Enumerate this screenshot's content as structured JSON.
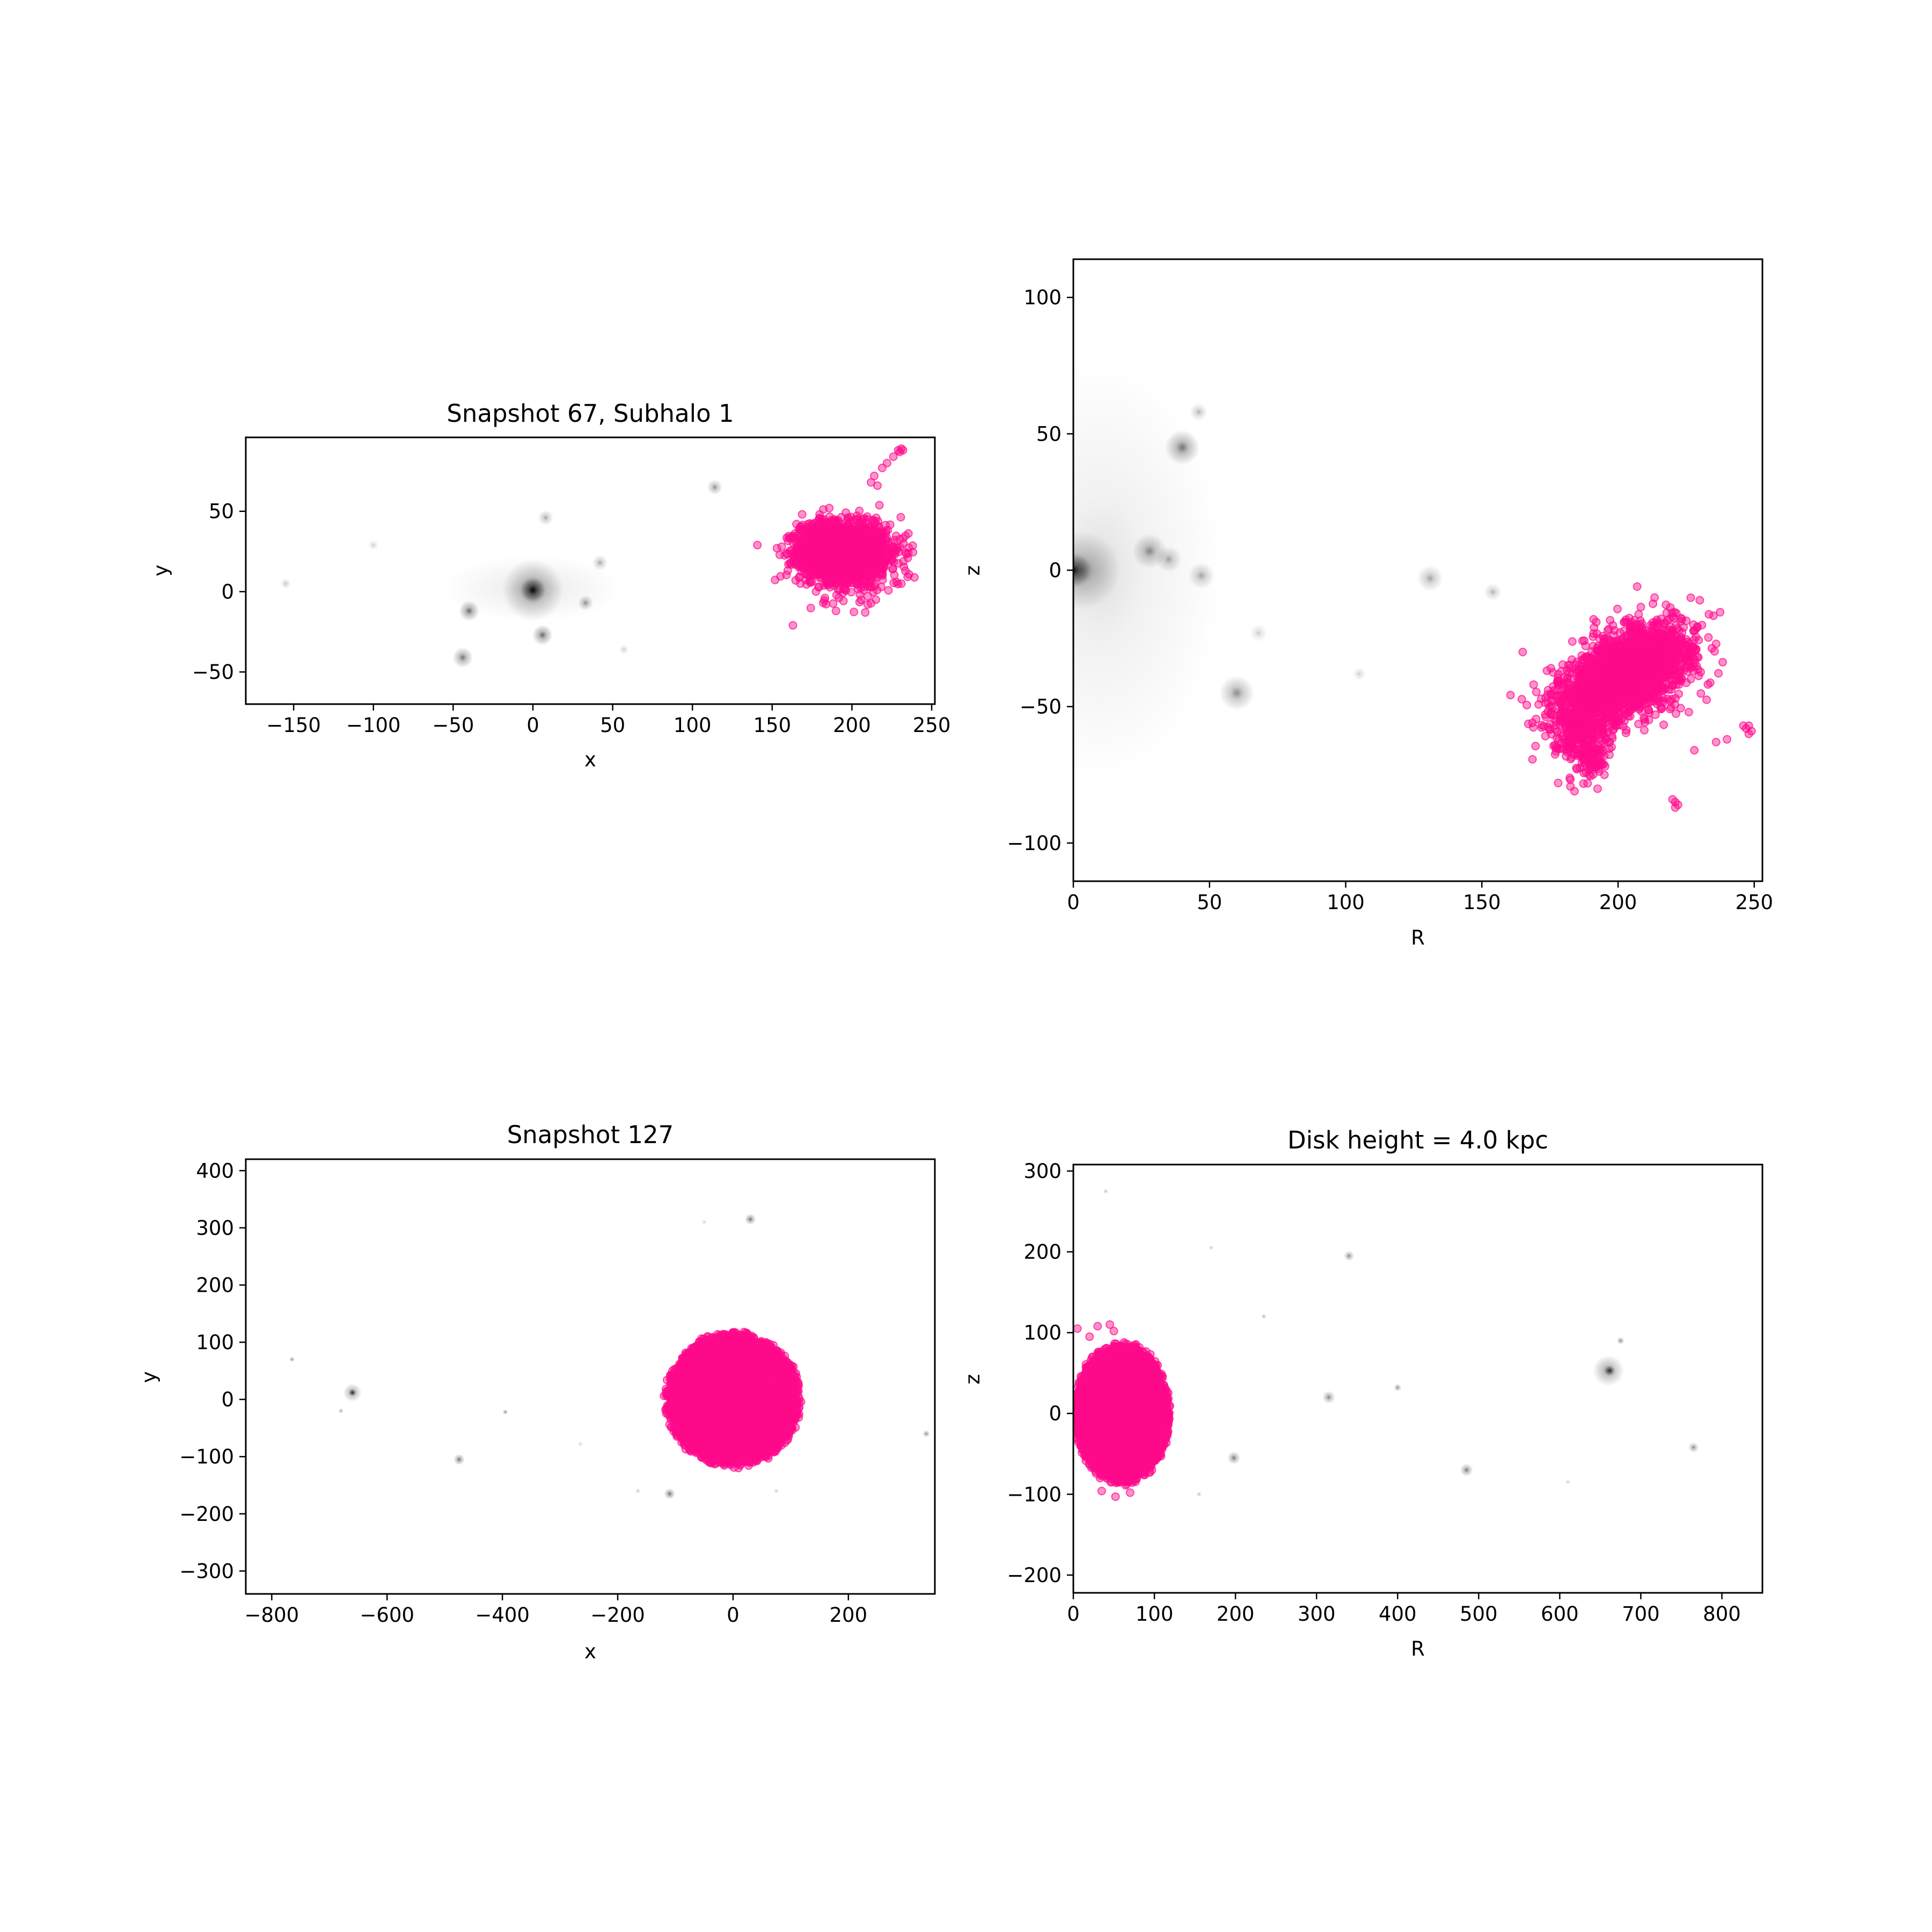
{
  "figure": {
    "background": "#ffffff",
    "particle_color": "#ff0a8c",
    "halo_color": "#000000"
  },
  "chart_data": [
    {
      "type": "scatter",
      "title": "Snapshot 67, Subhalo 1",
      "xlabel": "x",
      "ylabel": "y",
      "xlim": [
        -180,
        252
      ],
      "ylim": [
        -70,
        96
      ],
      "xticks": [
        -150,
        -100,
        -50,
        0,
        50,
        100,
        150,
        200,
        250
      ],
      "yticks": [
        -50,
        0,
        50
      ],
      "series": [
        {
          "blobs": [
            {
              "x": 195,
              "y": 25,
              "rx": 32,
              "ry": 20,
              "n": 2200
            },
            {
              "x": 178,
              "y": 30,
              "rx": 14,
              "ry": 18,
              "n": 300
            },
            {
              "x": 200,
              "y": 18,
              "rx": 38,
              "ry": 30,
              "n": 250
            }
          ],
          "points": [
            {
              "x": 229,
              "y": 88
            },
            {
              "x": 231,
              "y": 89
            },
            {
              "x": 232,
              "y": 88
            },
            {
              "x": 230,
              "y": 87
            },
            {
              "x": 226,
              "y": 84
            },
            {
              "x": 222,
              "y": 80
            },
            {
              "x": 219,
              "y": 77
            },
            {
              "x": 214,
              "y": 72
            },
            {
              "x": 216,
              "y": 66
            },
            {
              "x": 212,
              "y": 68
            },
            {
              "x": 163,
              "y": -21
            },
            {
              "x": 235,
              "y": 21
            },
            {
              "x": 228,
              "y": 6
            },
            {
              "x": 231,
              "y": 5
            },
            {
              "x": 190,
              "y": -12
            },
            {
              "x": 182,
              "y": -7
            },
            {
              "x": 215,
              "y": -5
            }
          ]
        }
      ],
      "halos": [
        {
          "x": 0,
          "y": 1,
          "s": 5,
          "a": 0.95
        },
        {
          "x": 0,
          "y": 1,
          "s": 12,
          "a": 0.5
        },
        {
          "x": 0,
          "y": 2,
          "sx": 35,
          "sy": 13,
          "a": 0.12
        },
        {
          "x": -40,
          "y": -12,
          "s": 4,
          "a": 0.6
        },
        {
          "x": 6,
          "y": -27,
          "s": 4,
          "a": 0.6
        },
        {
          "x": -44,
          "y": -41,
          "s": 4,
          "a": 0.55
        },
        {
          "x": 33,
          "y": -7,
          "s": 3,
          "a": 0.45
        },
        {
          "x": 114,
          "y": 65,
          "s": 3,
          "a": 0.45
        },
        {
          "x": 8,
          "y": 46,
          "s": 3,
          "a": 0.35
        },
        {
          "x": 42,
          "y": 18,
          "s": 3,
          "a": 0.35
        },
        {
          "x": -155,
          "y": 5,
          "s": 2,
          "a": 0.25
        },
        {
          "x": -100,
          "y": 29,
          "s": 2,
          "a": 0.2
        },
        {
          "x": 57,
          "y": -36,
          "s": 2,
          "a": 0.2
        }
      ]
    },
    {
      "type": "scatter",
      "title": "",
      "xlabel": "R",
      "ylabel": "z",
      "xlim": [
        0,
        253
      ],
      "ylim": [
        -114,
        114
      ],
      "xticks": [
        0,
        50,
        100,
        150,
        200,
        250
      ],
      "yticks": [
        -100,
        -50,
        0,
        50,
        100
      ],
      "series": [
        {
          "blobs": [
            {
              "x": 203,
              "y": -38,
              "rx": 30,
              "ry": 16,
              "rot": 30,
              "n": 2400
            },
            {
              "x": 186,
              "y": -57,
              "rx": 12,
              "ry": 15,
              "n": 350
            },
            {
              "x": 190,
              "y": -70,
              "rx": 6,
              "ry": 7,
              "n": 60
            }
          ],
          "points": [
            {
              "x": 247,
              "y": -58
            },
            {
              "x": 248,
              "y": -57
            },
            {
              "x": 249,
              "y": -59
            },
            {
              "x": 246,
              "y": -57
            },
            {
              "x": 248,
              "y": -60
            },
            {
              "x": 221,
              "y": -85
            },
            {
              "x": 222,
              "y": -86
            },
            {
              "x": 220,
              "y": -84
            },
            {
              "x": 221,
              "y": -87
            },
            {
              "x": 191,
              "y": -18
            },
            {
              "x": 192,
              "y": -19
            },
            {
              "x": 240,
              "y": -62
            },
            {
              "x": 236,
              "y": -63
            },
            {
              "x": 228,
              "y": -66
            },
            {
              "x": 165,
              "y": -30
            },
            {
              "x": 230,
              "y": -11
            },
            {
              "x": 236,
              "y": -27
            },
            {
              "x": 207,
              "y": -6
            },
            {
              "x": 178,
              "y": -78
            },
            {
              "x": 184,
              "y": -81
            },
            {
              "x": 195,
              "y": -75
            }
          ]
        }
      ],
      "halos": [
        {
          "x": 0,
          "y": 0,
          "s": 4,
          "a": 0.9
        },
        {
          "x": 3,
          "y": 0,
          "s": 9,
          "a": 0.45
        },
        {
          "x": 10,
          "y": 0,
          "sx": 28,
          "sy": 48,
          "a": 0.12
        },
        {
          "x": 40,
          "y": 45,
          "s": 4,
          "a": 0.55
        },
        {
          "x": 46,
          "y": 58,
          "s": 2,
          "a": 0.3
        },
        {
          "x": 28,
          "y": 7,
          "s": 4,
          "a": 0.45
        },
        {
          "x": 35,
          "y": 4,
          "s": 3,
          "a": 0.35
        },
        {
          "x": 47,
          "y": -2,
          "s": 3,
          "a": 0.35
        },
        {
          "x": 60,
          "y": -45,
          "s": 4,
          "a": 0.45
        },
        {
          "x": 131,
          "y": -3,
          "s": 3,
          "a": 0.35
        },
        {
          "x": 154,
          "y": -8,
          "s": 2,
          "a": 0.3
        },
        {
          "x": 68,
          "y": -23,
          "s": 2,
          "a": 0.2
        },
        {
          "x": 105,
          "y": -38,
          "s": 1.5,
          "a": 0.2
        }
      ]
    },
    {
      "type": "scatter",
      "title": "Snapshot 127",
      "xlabel": "x",
      "ylabel": "y",
      "xlim": [
        -845,
        350
      ],
      "ylim": [
        -340,
        420
      ],
      "xticks": [
        -800,
        -600,
        -400,
        -200,
        0,
        200
      ],
      "yticks": [
        -300,
        -200,
        -100,
        0,
        100,
        200,
        300,
        400
      ],
      "series": [
        {
          "blobs": [
            {
              "x": 0,
              "y": 0,
              "rx": 118,
              "ry": 118,
              "n": 5500,
              "uniform": true
            }
          ],
          "points": []
        }
      ],
      "halos": [
        {
          "x": -660,
          "y": 12,
          "s": 10,
          "a": 0.5
        },
        {
          "x": -660,
          "y": 12,
          "s": 4,
          "a": 0.8
        },
        {
          "x": -680,
          "y": -20,
          "s": 2,
          "a": 0.4
        },
        {
          "x": -765,
          "y": 70,
          "s": 3,
          "a": 0.5
        },
        {
          "x": -475,
          "y": -105,
          "s": 6,
          "a": 0.6
        },
        {
          "x": -395,
          "y": -22,
          "s": 3,
          "a": 0.5
        },
        {
          "x": 30,
          "y": 315,
          "s": 6,
          "a": 0.6
        },
        {
          "x": -110,
          "y": -165,
          "s": 6,
          "a": 0.6
        },
        {
          "x": 335,
          "y": -60,
          "s": 4,
          "a": 0.5
        },
        {
          "x": -165,
          "y": -160,
          "s": 2,
          "a": 0.3
        },
        {
          "x": 75,
          "y": -160,
          "s": 2,
          "a": 0.25
        },
        {
          "x": -50,
          "y": 310,
          "s": 2,
          "a": 0.2
        },
        {
          "x": -265,
          "y": -78,
          "s": 2,
          "a": 0.2
        }
      ]
    },
    {
      "type": "scatter",
      "title": "Disk height = 4.0 kpc",
      "xlabel": "R",
      "ylabel": "z",
      "xlim": [
        0,
        850
      ],
      "ylim": [
        -222,
        308
      ],
      "xticks": [
        0,
        100,
        200,
        300,
        400,
        500,
        600,
        700,
        800
      ],
      "yticks": [
        -200,
        -100,
        0,
        100,
        200,
        300
      ],
      "series": [
        {
          "blobs": [
            {
              "x": 60,
              "y": 0,
              "rx": 60,
              "ry": 88,
              "n": 4000,
              "uniform": true
            }
          ],
          "points": [
            {
              "x": 30,
              "y": 108
            },
            {
              "x": 45,
              "y": 110
            },
            {
              "x": 50,
              "y": 102
            },
            {
              "x": 5,
              "y": 105
            },
            {
              "x": 20,
              "y": 95
            },
            {
              "x": 52,
              "y": -103
            },
            {
              "x": 35,
              "y": -96
            },
            {
              "x": 70,
              "y": -98
            }
          ]
        }
      ],
      "halos": [
        {
          "x": 660,
          "y": 53,
          "s": 12,
          "a": 0.5
        },
        {
          "x": 662,
          "y": 53,
          "s": 4,
          "a": 0.8
        },
        {
          "x": 675,
          "y": 90,
          "s": 3,
          "a": 0.5
        },
        {
          "x": 315,
          "y": 20,
          "s": 5,
          "a": 0.5
        },
        {
          "x": 198,
          "y": -55,
          "s": 5,
          "a": 0.55
        },
        {
          "x": 485,
          "y": -70,
          "s": 5,
          "a": 0.55
        },
        {
          "x": 340,
          "y": 195,
          "s": 4,
          "a": 0.5
        },
        {
          "x": 400,
          "y": 32,
          "s": 3,
          "a": 0.5
        },
        {
          "x": 765,
          "y": -42,
          "s": 4,
          "a": 0.5
        },
        {
          "x": 235,
          "y": 120,
          "s": 2,
          "a": 0.35
        },
        {
          "x": 40,
          "y": 275,
          "s": 2,
          "a": 0.3
        },
        {
          "x": 170,
          "y": 205,
          "s": 2,
          "a": 0.25
        },
        {
          "x": 610,
          "y": -85,
          "s": 2,
          "a": 0.25
        },
        {
          "x": 155,
          "y": -100,
          "s": 2,
          "a": 0.3
        }
      ]
    }
  ]
}
